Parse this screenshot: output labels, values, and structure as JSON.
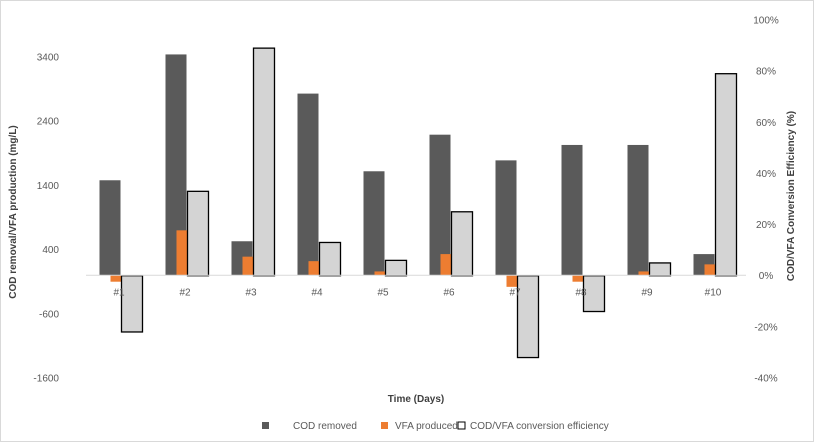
{
  "chart_data": {
    "type": "bar",
    "categories": [
      "#1",
      "#2",
      "#3",
      "#4",
      "#5",
      "#6",
      "#7",
      "#8",
      "#9",
      "#10"
    ],
    "xlabel": "Time (Days)",
    "ylabel": "COD removal/VFA production (mg/L)",
    "y2label": "COD/VFA Conversion Efficiency (%)",
    "ylim": [
      -1600,
      3400
    ],
    "y2lim": [
      -0.4,
      1.0
    ],
    "y_ticks": [
      "3400",
      "2400",
      "1400",
      "400",
      "-600",
      "-1600"
    ],
    "y2_ticks": [
      "100%",
      "80%",
      "60%",
      "40%",
      "20%",
      "0%",
      "-20%",
      "-40%"
    ],
    "grid": false,
    "legend_position": "bottom",
    "series": [
      {
        "name": "COD removed",
        "axis": "left",
        "color": "#5a5a5a",
        "values": [
          1480,
          3440,
          530,
          2830,
          1620,
          2190,
          1790,
          2030,
          2030,
          330
        ]
      },
      {
        "name": "VFA produced",
        "axis": "left",
        "color": "#ed7d31",
        "values": [
          -100,
          700,
          290,
          220,
          60,
          330,
          -180,
          -100,
          60,
          170
        ]
      },
      {
        "name": "COD/VFA conversion efficiency",
        "axis": "right",
        "color": "#d4d4d4",
        "stroke": "#000000",
        "values": [
          -0.22,
          0.33,
          0.89,
          0.13,
          0.06,
          0.25,
          -0.32,
          -0.14,
          0.05,
          0.79
        ]
      }
    ]
  }
}
